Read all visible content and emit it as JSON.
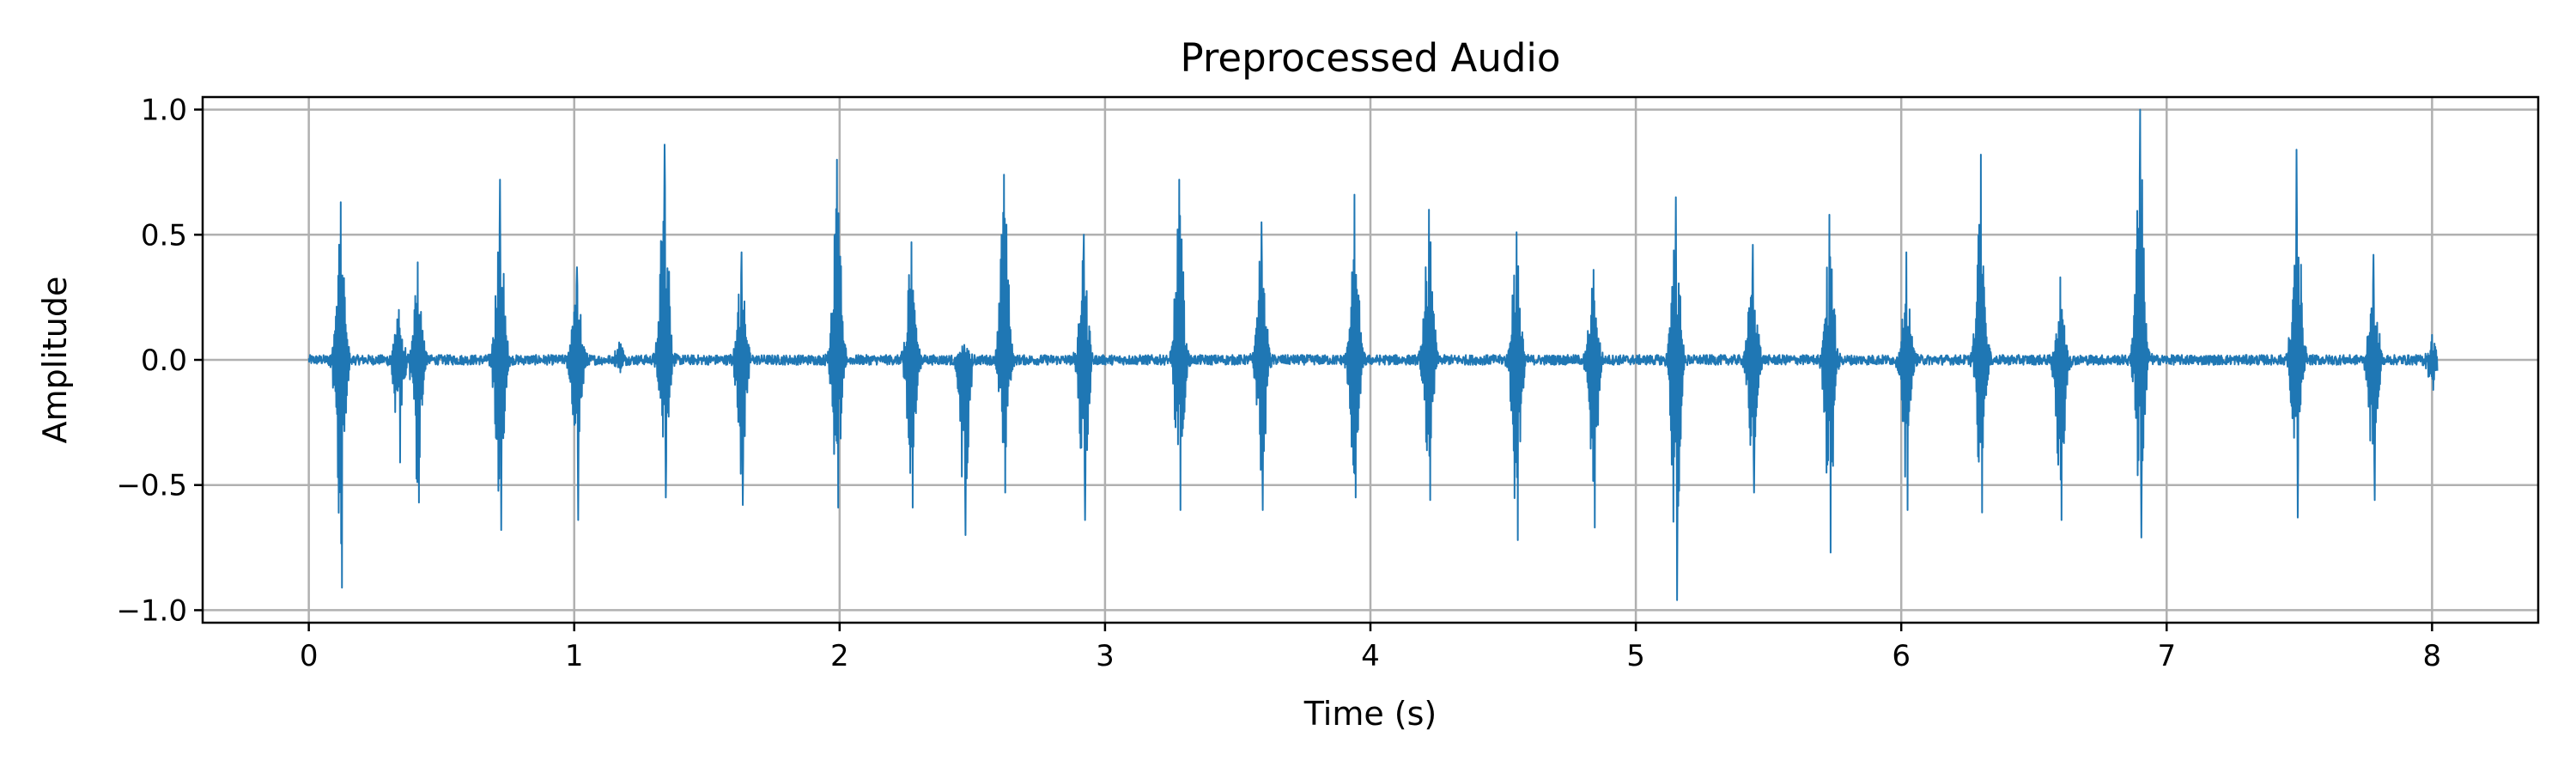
{
  "chart_data": {
    "type": "line",
    "title": "Preprocessed Audio",
    "xlabel": "Time (s)",
    "ylabel": "Amplitude",
    "xlim": [
      -0.4,
      8.4
    ],
    "ylim": [
      -1.05,
      1.05
    ],
    "x_ticks": [
      0,
      1,
      2,
      3,
      4,
      5,
      6,
      7,
      8
    ],
    "x_tick_labels": [
      "0",
      "1",
      "2",
      "3",
      "4",
      "5",
      "6",
      "7",
      "8"
    ],
    "y_ticks": [
      -1.0,
      -0.5,
      0.0,
      0.5,
      1.0
    ],
    "y_tick_labels": [
      "−1.0",
      "−0.5",
      "0.0",
      "0.5",
      "1.0"
    ],
    "grid": true,
    "colors": {
      "line": "#1f77b4",
      "grid": "#b0b0b0",
      "axes": "#000000"
    },
    "series": [
      {
        "x_range": [
          0,
          8.02
        ],
        "baseline_noise_amplitude": 0.02,
        "bursts": [
          {
            "t": 0.12,
            "max": 0.63,
            "min": -0.91
          },
          {
            "t": 0.34,
            "max": 0.2,
            "min": -0.41
          },
          {
            "t": 0.41,
            "max": 0.39,
            "min": -0.57
          },
          {
            "t": 0.72,
            "max": 0.72,
            "min": -0.68
          },
          {
            "t": 1.01,
            "max": 0.37,
            "min": -0.64
          },
          {
            "t": 1.17,
            "max": 0.07,
            "min": -0.05
          },
          {
            "t": 1.34,
            "max": 0.86,
            "min": -0.55
          },
          {
            "t": 1.63,
            "max": 0.43,
            "min": -0.58
          },
          {
            "t": 1.99,
            "max": 0.8,
            "min": -0.59
          },
          {
            "t": 2.27,
            "max": 0.47,
            "min": -0.59
          },
          {
            "t": 2.47,
            "max": 0.06,
            "min": -0.7
          },
          {
            "t": 2.62,
            "max": 0.74,
            "min": -0.53
          },
          {
            "t": 2.92,
            "max": 0.5,
            "min": -0.64
          },
          {
            "t": 3.28,
            "max": 0.72,
            "min": -0.6
          },
          {
            "t": 3.59,
            "max": 0.55,
            "min": -0.6
          },
          {
            "t": 3.94,
            "max": 0.66,
            "min": -0.55
          },
          {
            "t": 4.22,
            "max": 0.6,
            "min": -0.56
          },
          {
            "t": 4.55,
            "max": 0.51,
            "min": -0.72
          },
          {
            "t": 4.84,
            "max": 0.36,
            "min": -0.67
          },
          {
            "t": 5.15,
            "max": 0.65,
            "min": -0.96
          },
          {
            "t": 5.44,
            "max": 0.46,
            "min": -0.53
          },
          {
            "t": 5.73,
            "max": 0.58,
            "min": -0.77
          },
          {
            "t": 6.02,
            "max": 0.43,
            "min": -0.6
          },
          {
            "t": 6.3,
            "max": 0.82,
            "min": -0.61
          },
          {
            "t": 6.6,
            "max": 0.33,
            "min": -0.64
          },
          {
            "t": 6.9,
            "max": 1.0,
            "min": -0.71
          },
          {
            "t": 7.49,
            "max": 0.84,
            "min": -0.63
          },
          {
            "t": 7.78,
            "max": 0.42,
            "min": -0.56
          },
          {
            "t": 8.0,
            "max": 0.1,
            "min": -0.12
          }
        ]
      }
    ]
  }
}
